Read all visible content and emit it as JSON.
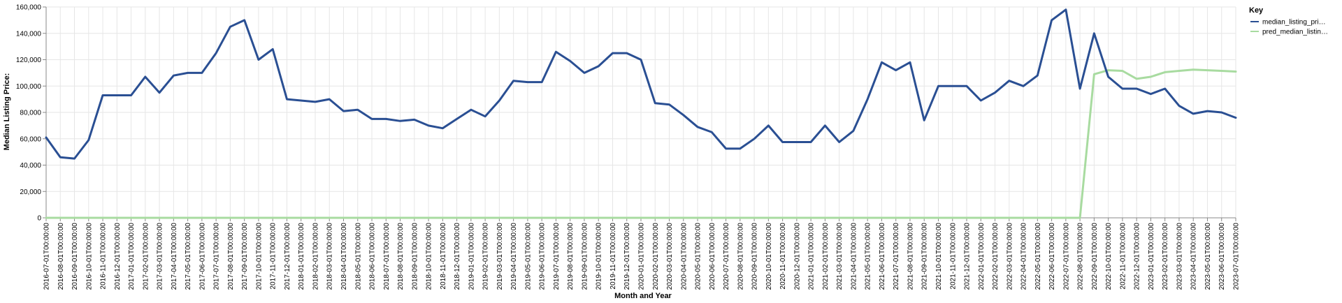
{
  "chart_data": {
    "type": "line",
    "xlabel": "Month and Year",
    "ylabel": "Median Listing Price:",
    "ylim": [
      0,
      160000
    ],
    "yticks": [
      "0",
      "20,000",
      "40,000",
      "60,000",
      "80,000",
      "100,000",
      "120,000",
      "140,000",
      "160,000"
    ],
    "grid": true,
    "legend": {
      "title": "Key",
      "placement": "top-right",
      "entries": [
        "median_listing_pri…",
        "pred_median_listin…"
      ]
    },
    "colors": {
      "median_listing_price": "#2a4f93",
      "pred_median_listing_price": "#a8dba0",
      "grid": "#e6e6e6",
      "axis": "#888888"
    },
    "x": [
      "2016-07-01T00:00:00",
      "2016-08-01T00:00:00",
      "2016-09-01T00:00:00",
      "2016-10-01T00:00:00",
      "2016-11-01T00:00:00",
      "2016-12-01T00:00:00",
      "2017-01-01T00:00:00",
      "2017-02-01T00:00:00",
      "2017-03-01T00:00:00",
      "2017-04-01T00:00:00",
      "2017-05-01T00:00:00",
      "2017-06-01T00:00:00",
      "2017-07-01T00:00:00",
      "2017-08-01T00:00:00",
      "2017-09-01T00:00:00",
      "2017-10-01T00:00:00",
      "2017-11-01T00:00:00",
      "2017-12-01T00:00:00",
      "2018-01-01T00:00:00",
      "2018-02-01T00:00:00",
      "2018-03-01T00:00:00",
      "2018-04-01T00:00:00",
      "2018-05-01T00:00:00",
      "2018-06-01T00:00:00",
      "2018-07-01T00:00:00",
      "2018-08-01T00:00:00",
      "2018-09-01T00:00:00",
      "2018-10-01T00:00:00",
      "2018-11-01T00:00:00",
      "2018-12-01T00:00:00",
      "2019-01-01T00:00:00",
      "2019-02-01T00:00:00",
      "2019-03-01T00:00:00",
      "2019-04-01T00:00:00",
      "2019-05-01T00:00:00",
      "2019-06-01T00:00:00",
      "2019-07-01T00:00:00",
      "2019-08-01T00:00:00",
      "2019-09-01T00:00:00",
      "2019-10-01T00:00:00",
      "2019-11-01T00:00:00",
      "2019-12-01T00:00:00",
      "2020-01-01T00:00:00",
      "2020-02-01T00:00:00",
      "2020-03-01T00:00:00",
      "2020-04-01T00:00:00",
      "2020-05-01T00:00:00",
      "2020-06-01T00:00:00",
      "2020-07-01T00:00:00",
      "2020-08-01T00:00:00",
      "2020-09-01T00:00:00",
      "2020-10-01T00:00:00",
      "2020-11-01T00:00:00",
      "2020-12-01T00:00:00",
      "2021-01-01T00:00:00",
      "2021-02-01T00:00:00",
      "2021-03-01T00:00:00",
      "2021-04-01T00:00:00",
      "2021-05-01T00:00:00",
      "2021-06-01T00:00:00",
      "2021-07-01T00:00:00",
      "2021-08-01T00:00:00",
      "2021-09-01T00:00:00",
      "2021-10-01T00:00:00",
      "2021-11-01T00:00:00",
      "2021-12-01T00:00:00",
      "2022-01-01T00:00:00",
      "2022-02-01T00:00:00",
      "2022-03-01T00:00:00",
      "2022-04-01T00:00:00",
      "2022-05-01T00:00:00",
      "2022-06-01T00:00:00",
      "2022-07-01T00:00:00",
      "2022-08-01T00:00:00",
      "2022-09-01T00:00:00",
      "2022-10-01T00:00:00",
      "2022-11-01T00:00:00",
      "2022-12-01T00:00:00",
      "2023-01-01T00:00:00",
      "2023-02-01T00:00:00",
      "2023-03-01T00:00:00",
      "2023-04-01T00:00:00",
      "2023-05-01T00:00:00",
      "2023-06-01T00:00:00",
      "2023-07-01T00:00:00"
    ],
    "series": [
      {
        "name": "median_listing_pri…",
        "values": [
          61000,
          46000,
          45000,
          59000,
          93000,
          93000,
          93000,
          107000,
          95000,
          108000,
          110000,
          110000,
          125000,
          145000,
          150000,
          120000,
          128000,
          90000,
          89000,
          88000,
          90000,
          81000,
          82000,
          75000,
          75000,
          73500,
          74500,
          70000,
          68000,
          75000,
          82000,
          77000,
          89000,
          104000,
          103000,
          103000,
          126000,
          119000,
          110000,
          115000,
          125000,
          125000,
          120000,
          87000,
          86000,
          78000,
          69000,
          65000,
          52500,
          52500,
          60000,
          70000,
          57500,
          57500,
          57500,
          70000,
          57500,
          66000,
          90000,
          118000,
          112000,
          118000,
          74000,
          100000,
          100000,
          100000,
          89000,
          95000,
          104000,
          100000,
          108000,
          150000,
          158000,
          98000,
          140000,
          107000,
          98000,
          98000,
          94000,
          98000,
          85000,
          79000,
          81000,
          80000,
          76000
        ]
      },
      {
        "name": "pred_median_listin…",
        "values": [
          0,
          0,
          0,
          0,
          0,
          0,
          0,
          0,
          0,
          0,
          0,
          0,
          0,
          0,
          0,
          0,
          0,
          0,
          0,
          0,
          0,
          0,
          0,
          0,
          0,
          0,
          0,
          0,
          0,
          0,
          0,
          0,
          0,
          0,
          0,
          0,
          0,
          0,
          0,
          0,
          0,
          0,
          0,
          0,
          0,
          0,
          0,
          0,
          0,
          0,
          0,
          0,
          0,
          0,
          0,
          0,
          0,
          0,
          0,
          0,
          0,
          0,
          0,
          0,
          0,
          0,
          0,
          0,
          0,
          0,
          0,
          0,
          0,
          0,
          109000,
          112000,
          111500,
          105500,
          107000,
          110500,
          111500,
          112500,
          112000,
          111500,
          111000
        ]
      }
    ]
  }
}
